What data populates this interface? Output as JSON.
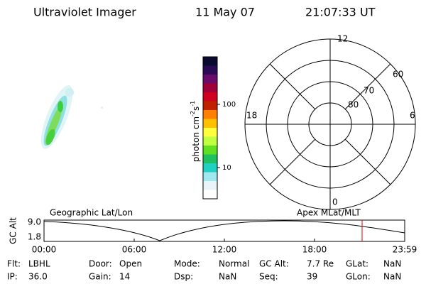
{
  "header": {
    "instrument": "Ultraviolet Imager",
    "date": "11 May 07",
    "time": "21:07:33 UT"
  },
  "colorbar": {
    "label": "photon cm",
    "exp1": "-2",
    "unit2": "s",
    "exp2": "-1",
    "ticks": [
      "100",
      "10"
    ]
  },
  "polar": {
    "top": "12",
    "bottom": "0",
    "left": "18",
    "right": "6",
    "rings": [
      "60",
      "70",
      "80"
    ]
  },
  "timeline": {
    "left_title": "Geographic Lat/Lon",
    "right_title": "Apex MLat/MLT",
    "y_label": "GC Alt",
    "y_ticks": [
      "9.0",
      "1.8"
    ],
    "x_ticks": [
      "00:00",
      "06:00",
      "12:00",
      "18:00",
      "23:59"
    ]
  },
  "info": {
    "rows": [
      [
        [
          "Flt:",
          "LBHL"
        ],
        [
          "Door:",
          "Open"
        ],
        [
          "Mode:",
          "Normal"
        ],
        [
          "GC Alt:",
          "7.7 Re"
        ],
        [
          "GLat:",
          "NaN"
        ]
      ],
      [
        [
          "IP:",
          "36.0"
        ],
        [
          "Gain:",
          "14"
        ],
        [
          "Dsp:",
          "NaN"
        ],
        [
          "Seq:",
          "39"
        ],
        [
          "GLon:",
          "NaN"
        ]
      ]
    ]
  }
}
